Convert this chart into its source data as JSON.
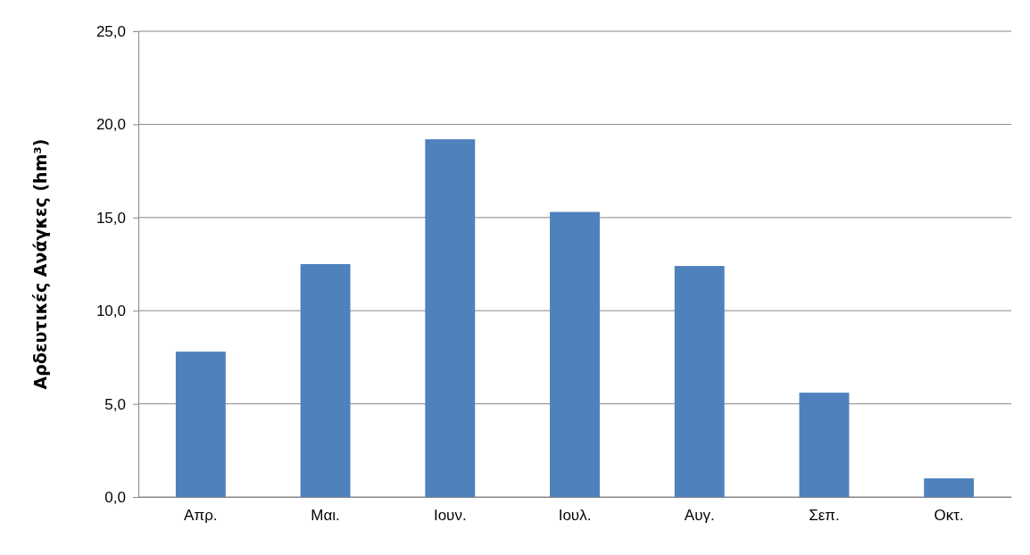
{
  "chart_data": {
    "type": "bar",
    "ylabel": "Αρδευτικές Ανάγκες (hm³)",
    "categories": [
      "Απρ.",
      "Μαι.",
      "Ιουν.",
      "Ιουλ.",
      "Αυγ.",
      "Σεπ.",
      "Οκτ."
    ],
    "values": [
      7.8,
      12.5,
      19.2,
      15.3,
      12.4,
      5.6,
      1.0
    ],
    "color": "#4f81bd",
    "ylim": [
      0,
      25
    ],
    "yticks": [
      {
        "value": 0,
        "label": "0,0"
      },
      {
        "value": 5,
        "label": "5,0"
      },
      {
        "value": 10,
        "label": "10,0"
      },
      {
        "value": 15,
        "label": "15,0"
      },
      {
        "value": 20,
        "label": "20,0"
      },
      {
        "value": 25,
        "label": "25,0"
      }
    ],
    "grid": "y"
  }
}
